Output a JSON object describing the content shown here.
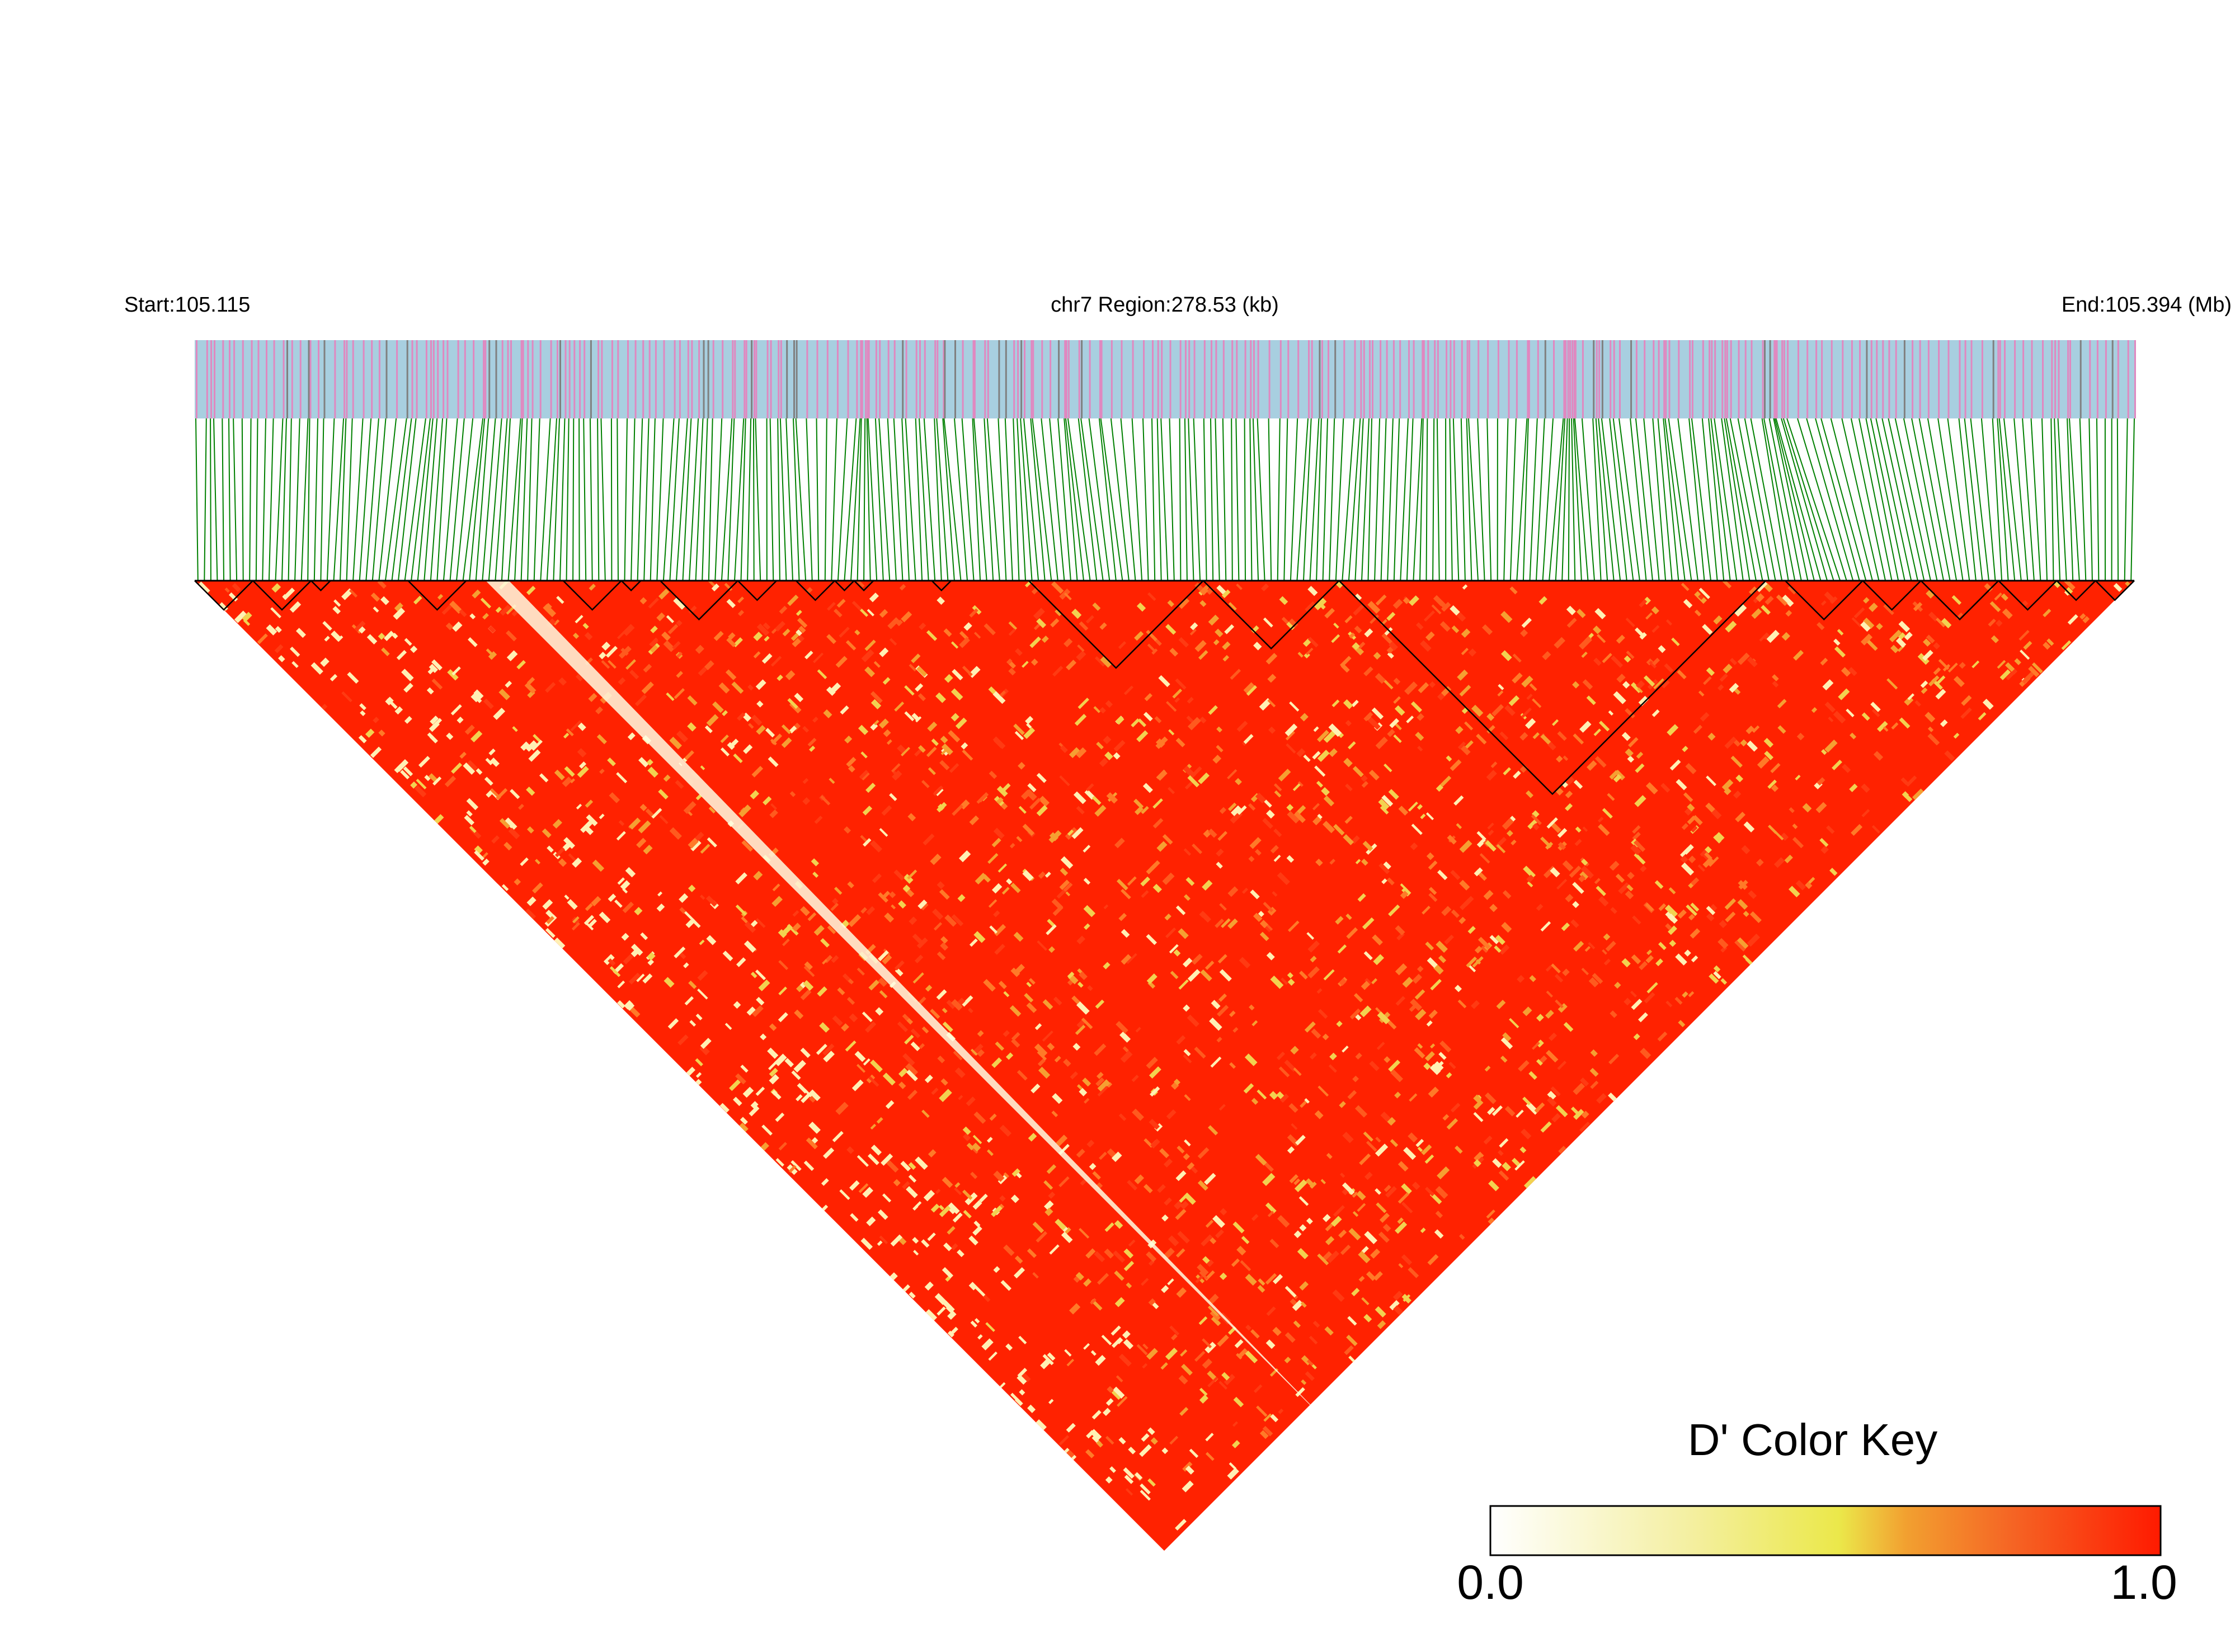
{
  "header": {
    "start_label": "Start:105.115",
    "region_label": "chr7 Region:278.53 (kb)",
    "end_label": "End:105.394 (Mb)"
  },
  "chart_data": {
    "type": "heatmap",
    "description_type": "LD triangle heatmap",
    "chromosome": "chr7",
    "region_start_mb": 105.115,
    "region_end_mb": 105.394,
    "region_length_kb": 278.53,
    "metric": "D'",
    "color_key": {
      "title": "D' Color Key",
      "min": 0.0,
      "max": 1.0,
      "min_label": "0.0",
      "max_label": "1.0",
      "colors": [
        "#ffffff",
        "#f5f0a0",
        "#ebe84a",
        "#f2a030",
        "#f56424",
        "#ff1a00"
      ]
    },
    "track_colors": {
      "snp_bar_background": "#a8cfe0",
      "snp_marks": "#e088c0",
      "snp_marks_dark": "#808080",
      "connector_lines": "#008000",
      "heatmap_high": "#ff2200",
      "heatmap_low": "#fffbe0",
      "block_outline": "#000000"
    },
    "snp_count_approx": 300,
    "haplotype_blocks_fraction": [
      [
        0.0,
        0.03
      ],
      [
        0.03,
        0.06
      ],
      [
        0.06,
        0.07
      ],
      [
        0.11,
        0.14
      ],
      [
        0.19,
        0.22
      ],
      [
        0.22,
        0.23
      ],
      [
        0.24,
        0.28
      ],
      [
        0.28,
        0.3
      ],
      [
        0.31,
        0.33
      ],
      [
        0.33,
        0.34
      ],
      [
        0.34,
        0.35
      ],
      [
        0.38,
        0.39
      ],
      [
        0.43,
        0.52
      ],
      [
        0.52,
        0.59
      ],
      [
        0.59,
        0.81
      ],
      [
        0.82,
        0.86
      ],
      [
        0.86,
        0.89
      ],
      [
        0.89,
        0.93
      ],
      [
        0.93,
        0.96
      ],
      [
        0.96,
        0.98
      ],
      [
        0.98,
        1.0
      ]
    ],
    "low_ld_diagonal_band": {
      "start_fraction": 0.15,
      "end_fraction": 0.585,
      "width_fraction": 0.012
    }
  }
}
